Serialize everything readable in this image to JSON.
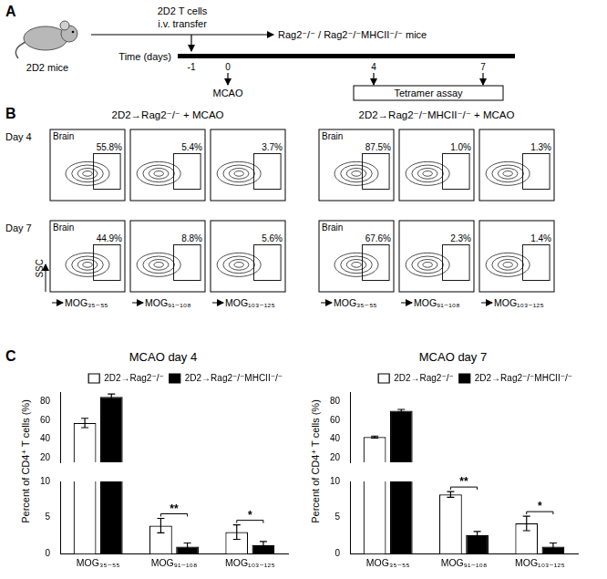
{
  "panel_a": {
    "label": "A",
    "donor": "2D2 mice",
    "transfer": [
      "2D2 T cells",
      "i.v. transfer"
    ],
    "recipients": "Rag2⁻/⁻ / Rag2⁻/⁻MHCII⁻/⁻ mice",
    "timeline_label": "Time (days)",
    "timeline_ticks": [
      -1,
      0,
      4,
      7
    ],
    "events": [
      {
        "day": 0,
        "label": "MCAO"
      }
    ],
    "assay": {
      "days": [
        4,
        7
      ],
      "label": "Tetramer assay"
    }
  },
  "panel_b": {
    "label": "B",
    "y_label": "SSC",
    "tissue": "Brain",
    "x_labels": [
      "MOG₃₅₋₅₅",
      "MOG₉₁₋₁₀₈",
      "MOG₁₀₃₋₁₂₅"
    ],
    "groups": [
      {
        "title": "2D2→Rag2⁻/⁻ + MCAO",
        "rows": [
          {
            "label": "Day 4",
            "gates": [
              "55.8%",
              "5.4%",
              "3.7%"
            ]
          },
          {
            "label": "Day 7",
            "gates": [
              "44.9%",
              "8.8%",
              "5.6%"
            ]
          }
        ]
      },
      {
        "title": "2D2→Rag2⁻/⁻MHCII⁻/⁻ + MCAO",
        "rows": [
          {
            "label": "Day 4",
            "gates": [
              "87.5%",
              "1.0%",
              "1.3%"
            ]
          },
          {
            "label": "Day 7",
            "gates": [
              "67.6%",
              "2.3%",
              "1.4%"
            ]
          }
        ]
      }
    ]
  },
  "panel_c": {
    "label": "C"
  },
  "chart_data": [
    {
      "type": "bar",
      "title": "MCAO day 4",
      "y_label": "Percent of CD4⁺ T cells (%)",
      "categories": [
        "MOG₃₅₋₅₅",
        "MOG₉₁₋₁₀₈",
        "MOG₁₀₃₋₁₂₅"
      ],
      "series": [
        {
          "name": "2D2→Rag2⁻/⁻",
          "color": "#ffffff",
          "values": [
            57,
            3.9,
            3.0
          ],
          "errors": [
            5,
            1.0,
            1.0
          ]
        },
        {
          "name": "2D2→Rag2⁻/⁻MHCII⁻/⁻",
          "color": "#000000",
          "values": [
            85,
            1.0,
            1.2
          ],
          "errors": [
            3,
            0.5,
            0.5
          ]
        }
      ],
      "y_segments": [
        {
          "ylim": [
            15,
            90
          ],
          "yticks": [
            20,
            40,
            60,
            80
          ]
        },
        {
          "ylim": [
            0,
            10
          ],
          "yticks": [
            0,
            5,
            10
          ]
        }
      ],
      "annotations": [
        {
          "category": "MOG₉₁₋₁₀₈",
          "text": "**"
        },
        {
          "category": "MOG₁₀₃₋₁₂₅",
          "text": "*"
        }
      ],
      "legend": "top-right",
      "grid": false
    },
    {
      "type": "bar",
      "title": "MCAO day 7",
      "y_label": "Percent of CD4⁺ T cells (%)",
      "categories": [
        "MOG₃₅₋₅₅",
        "MOG₉₁₋₁₀₈",
        "MOG₁₀₃₋₁₂₅"
      ],
      "series": [
        {
          "name": "2D2→Rag2⁻/⁻",
          "color": "#ffffff",
          "values": [
            42,
            8.2,
            4.2
          ],
          "errors": [
            1,
            0.4,
            1.0
          ]
        },
        {
          "name": "2D2→Rag2⁻/⁻MHCII⁻/⁻",
          "color": "#000000",
          "values": [
            70,
            2.6,
            1.0
          ],
          "errors": [
            1.5,
            0.5,
            0.5
          ]
        }
      ],
      "y_segments": [
        {
          "ylim": [
            15,
            90
          ],
          "yticks": [
            20,
            40,
            60,
            80
          ]
        },
        {
          "ylim": [
            0,
            10
          ],
          "yticks": [
            0,
            5,
            10
          ]
        }
      ],
      "annotations": [
        {
          "category": "MOG₉₁₋₁₀₈",
          "text": "**"
        },
        {
          "category": "MOG₁₀₃₋₁₂₅",
          "text": "*"
        }
      ],
      "legend": "top-right",
      "grid": false
    }
  ]
}
